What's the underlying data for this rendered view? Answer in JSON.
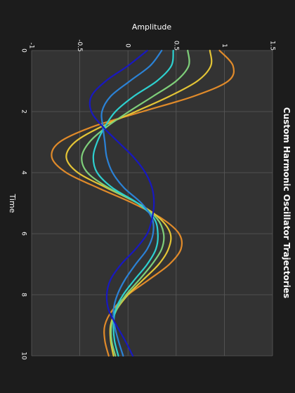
{
  "chart_data": {
    "type": "line",
    "title": "Custom Harmonic Oscillator Trajectories",
    "xlabel": "Time",
    "ylabel": "Amplitude",
    "xlim": [
      0,
      10
    ],
    "ylim": [
      -1,
      1.5
    ],
    "x_ticks": [
      "0",
      "2",
      "4",
      "6",
      "8",
      "10"
    ],
    "y_ticks": [
      "-1",
      "-0.5",
      "0",
      "0.5",
      "1",
      "1.5"
    ],
    "grid": true,
    "orientation": "rotated 90 degrees clockwise: time runs top to bottom, amplitude runs left to right",
    "colors": {
      "figure_background": "#1c1c1c",
      "plot_background": "#333333",
      "grid": "#5a5a5a",
      "text": "#ffffff"
    },
    "series": [
      {
        "color": "#e08a2a",
        "x": [
          0,
          0.5,
          1,
          1.5,
          2,
          2.5,
          3,
          3.5,
          4,
          4.5,
          5,
          5.5,
          6,
          6.5,
          7,
          7.5,
          8,
          8.5,
          9,
          9.5,
          10
        ],
        "y": [
          0.95,
          1.09,
          1.04,
          0.68,
          0.15,
          -0.37,
          -0.71,
          -0.79,
          -0.64,
          -0.31,
          0.05,
          0.35,
          0.53,
          0.55,
          0.43,
          0.22,
          0.0,
          -0.16,
          -0.24,
          -0.24,
          -0.2
        ]
      },
      {
        "color": "#e3c436",
        "x": [
          0,
          0.5,
          1,
          1.5,
          2,
          2.5,
          3,
          3.5,
          4,
          4.5,
          5,
          5.5,
          6,
          6.5,
          7,
          7.5,
          8,
          8.5,
          9,
          9.5,
          10
        ],
        "y": [
          0.85,
          0.86,
          0.72,
          0.43,
          0.08,
          -0.28,
          -0.55,
          -0.64,
          -0.52,
          -0.22,
          0.1,
          0.33,
          0.44,
          0.42,
          0.32,
          0.16,
          0.0,
          -0.12,
          -0.18,
          -0.18,
          -0.15
        ]
      },
      {
        "color": "#7fcf7a",
        "x": [
          0,
          0.5,
          1,
          1.5,
          2,
          2.5,
          3,
          3.5,
          4,
          4.5,
          5,
          5.5,
          6,
          6.5,
          7,
          7.5,
          8,
          8.5,
          9,
          9.5,
          10
        ],
        "y": [
          0.62,
          0.63,
          0.5,
          0.26,
          0.01,
          -0.22,
          -0.4,
          -0.48,
          -0.42,
          -0.2,
          0.1,
          0.3,
          0.37,
          0.35,
          0.25,
          0.12,
          -0.02,
          -0.12,
          -0.17,
          -0.17,
          -0.13
        ]
      },
      {
        "color": "#2ed0cf",
        "x": [
          0,
          0.5,
          1,
          1.5,
          2,
          2.5,
          3,
          3.5,
          4,
          4.5,
          5,
          5.5,
          6,
          6.5,
          7,
          7.5,
          8,
          8.5,
          9,
          9.5,
          10
        ],
        "y": [
          0.47,
          0.45,
          0.3,
          0.06,
          -0.13,
          -0.24,
          -0.32,
          -0.36,
          -0.32,
          -0.16,
          0.1,
          0.27,
          0.31,
          0.29,
          0.2,
          0.07,
          -0.05,
          -0.13,
          -0.15,
          -0.14,
          -0.1
        ]
      },
      {
        "color": "#2b82d6",
        "x": [
          0,
          0.5,
          1,
          1.5,
          2,
          2.5,
          3,
          3.5,
          4,
          4.5,
          5,
          5.5,
          6,
          6.5,
          7,
          7.5,
          8,
          8.5,
          9,
          9.5,
          10
        ],
        "y": [
          0.35,
          0.23,
          0.02,
          -0.18,
          -0.27,
          -0.26,
          -0.24,
          -0.22,
          -0.16,
          -0.04,
          0.14,
          0.25,
          0.26,
          0.2,
          0.08,
          -0.03,
          -0.11,
          -0.15,
          -0.14,
          -0.1,
          -0.05
        ]
      },
      {
        "color": "#1818c0",
        "x": [
          0,
          0.5,
          1,
          1.5,
          2,
          2.5,
          3,
          3.5,
          4,
          4.5,
          5,
          5.5,
          6,
          6.5,
          7,
          7.5,
          8,
          8.5,
          9,
          9.5,
          10
        ],
        "y": [
          0.2,
          0.0,
          -0.23,
          -0.38,
          -0.38,
          -0.26,
          -0.1,
          0.06,
          0.18,
          0.25,
          0.27,
          0.25,
          0.2,
          0.08,
          -0.07,
          -0.18,
          -0.22,
          -0.2,
          -0.12,
          -0.03,
          0.05
        ]
      }
    ]
  }
}
